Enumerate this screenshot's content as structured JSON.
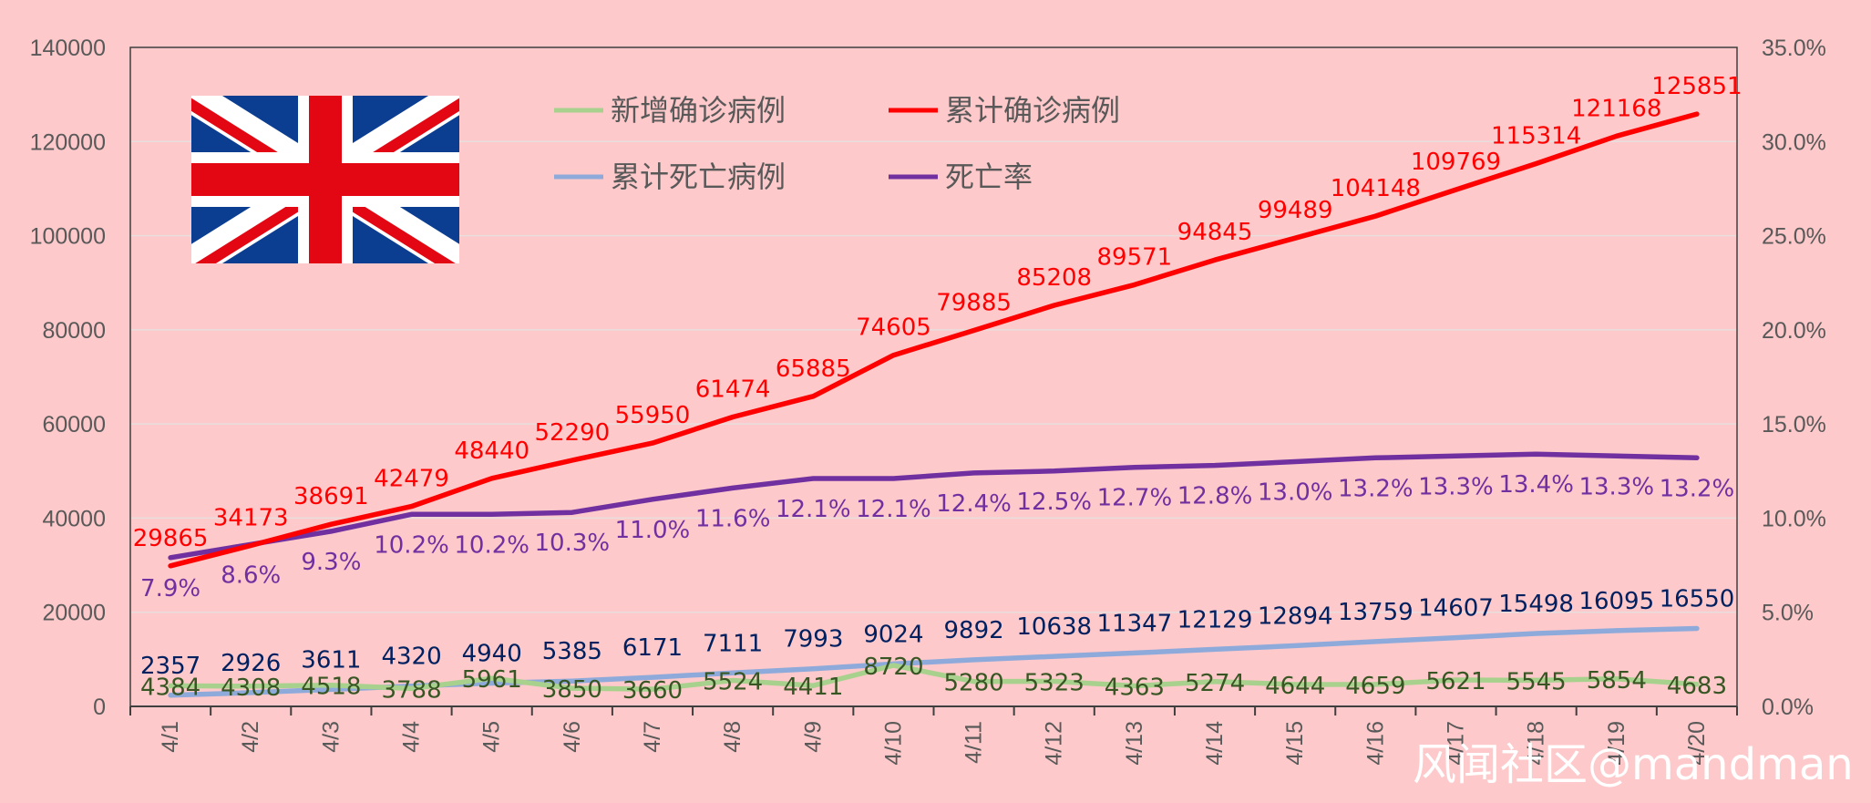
{
  "chart_data": {
    "type": "line",
    "x": [
      "4/1",
      "4/2",
      "4/3",
      "4/4",
      "4/5",
      "4/6",
      "4/7",
      "4/8",
      "4/9",
      "4/10",
      "4/11",
      "4/12",
      "4/13",
      "4/14",
      "4/15",
      "4/16",
      "4/17",
      "4/18",
      "4/19",
      "4/20"
    ],
    "y_left_ticks": [
      "0",
      "20000",
      "40000",
      "60000",
      "80000",
      "100000",
      "120000",
      "140000"
    ],
    "y_right_ticks": [
      "0.0%",
      "5.0%",
      "10.0%",
      "15.0%",
      "20.0%",
      "25.0%",
      "30.0%",
      "35.0%"
    ],
    "y_left_range": [
      0,
      140000
    ],
    "y_right_range": [
      0,
      0.35
    ],
    "grid": true,
    "legend_position": "top-left-inside",
    "series": [
      {
        "name": "新增确诊病例",
        "axis": "left",
        "color": "#a9d18e",
        "values": [
          4384,
          4308,
          4518,
          3788,
          5961,
          3850,
          3660,
          5524,
          4411,
          8720,
          5280,
          5323,
          4363,
          5274,
          4644,
          4659,
          5621,
          5545,
          5854,
          4683
        ],
        "labels": [
          "4384",
          "4308",
          "4518",
          "3788",
          "5961",
          "3850",
          "3660",
          "5524",
          "4411",
          "8720",
          "5280",
          "5323",
          "4363",
          "5274",
          "4644",
          "4659",
          "5621",
          "5545",
          "5854",
          "4683"
        ],
        "label_color": "#375623"
      },
      {
        "name": "累计确诊病例",
        "axis": "left",
        "color": "#ff0000",
        "values": [
          29865,
          34173,
          38691,
          42479,
          48440,
          52290,
          55950,
          61474,
          65885,
          74605,
          79885,
          85208,
          89571,
          94845,
          99489,
          104148,
          109769,
          115314,
          121168,
          125851
        ],
        "labels": [
          "29865",
          "34173",
          "38691",
          "42479",
          "48440",
          "52290",
          "55950",
          "61474",
          "65885",
          "74605",
          "79885",
          "85208",
          "89571",
          "94845",
          "99489",
          "104148",
          "109769",
          "115314",
          "121168",
          "125851"
        ],
        "label_color": "#ff0000"
      },
      {
        "name": "累计死亡病例",
        "axis": "left",
        "color": "#8eaadb",
        "values": [
          2357,
          2926,
          3611,
          4320,
          4940,
          5385,
          6171,
          7111,
          7993,
          9024,
          9892,
          10638,
          11347,
          12129,
          12894,
          13759,
          14607,
          15498,
          16095,
          16550
        ],
        "labels": [
          "2357",
          "2926",
          "3611",
          "4320",
          "4940",
          "5385",
          "6171",
          "7111",
          "7993",
          "9024",
          "9892",
          "10638",
          "11347",
          "12129",
          "12894",
          "13759",
          "14607",
          "15498",
          "16095",
          "16550"
        ],
        "label_color": "#002060"
      },
      {
        "name": "死亡率",
        "axis": "right",
        "color": "#7030a0",
        "values": [
          0.079,
          0.086,
          0.093,
          0.102,
          0.102,
          0.103,
          0.11,
          0.116,
          0.121,
          0.121,
          0.124,
          0.125,
          0.127,
          0.128,
          0.13,
          0.132,
          0.133,
          0.134,
          0.133,
          0.132
        ],
        "labels": [
          "7.9%",
          "8.6%",
          "9.3%",
          "10.2%",
          "10.2%",
          "10.3%",
          "11.0%",
          "11.6%",
          "12.1%",
          "12.1%",
          "12.4%",
          "12.5%",
          "12.7%",
          "12.8%",
          "13.0%",
          "13.2%",
          "13.3%",
          "13.4%",
          "13.3%",
          "13.2%"
        ],
        "label_color": "#7030a0"
      }
    ]
  },
  "flag": {
    "icon": "uk-flag-icon"
  },
  "watermark": {
    "text": "风闻社区@mandman"
  },
  "colors": {
    "background": "#fec9ca",
    "gridline": "#e8dede",
    "axis_text": "#595959",
    "flag_blue": "#0b3d91",
    "flag_red": "#e30613"
  }
}
